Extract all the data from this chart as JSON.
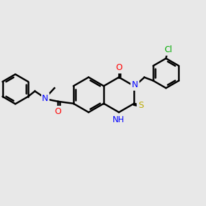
{
  "bg_color": "#e8e8e8",
  "bond_color": "#000000",
  "bond_width": 1.8,
  "atom_colors": {
    "O": "#ff0000",
    "N": "#0000ff",
    "S": "#bbaa00",
    "Cl": "#00aa00",
    "C": "#000000",
    "H": "#000000"
  },
  "figsize": [
    3.0,
    3.0
  ],
  "dpi": 100,
  "xlim": [
    0,
    10
  ],
  "ylim": [
    0,
    10
  ]
}
